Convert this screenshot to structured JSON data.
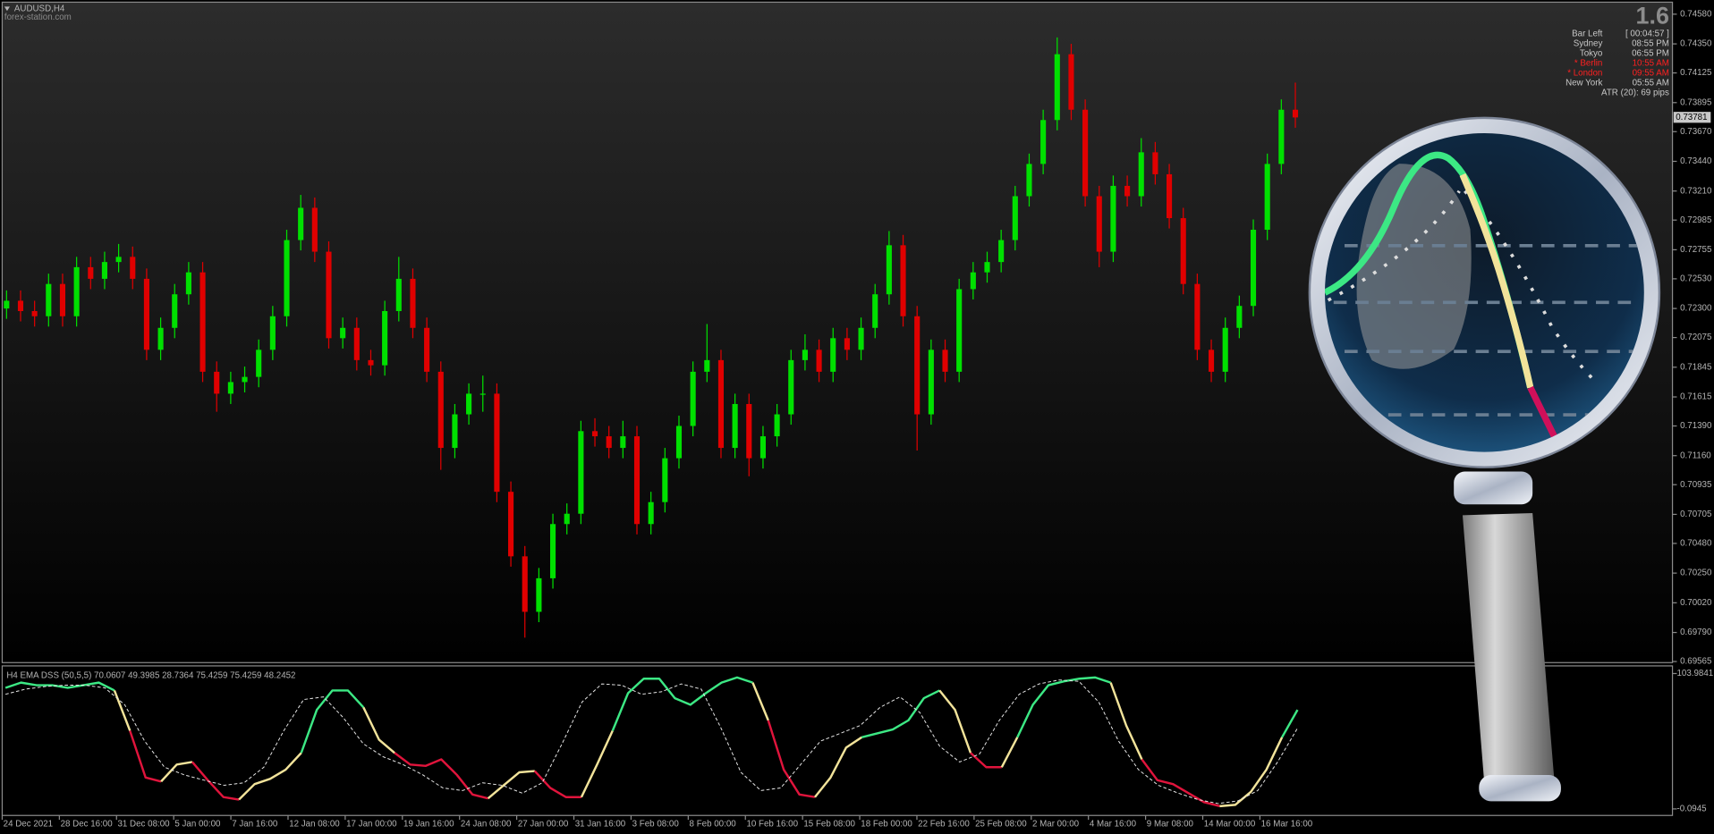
{
  "header": {
    "symbol": "AUDUSD,H4",
    "site": "forex-station.com"
  },
  "info_panel": {
    "version": "1.6",
    "rows": [
      {
        "label": "Bar Left",
        "value": "[ 00:04:57 ]",
        "color": "#c8c8c8"
      },
      {
        "label": "Sydney",
        "value": "08:55 PM",
        "color": "#c8c8c8"
      },
      {
        "label": "Tokyo",
        "value": "06:55 PM",
        "color": "#c8c8c8"
      },
      {
        "label": "* Berlin",
        "value": "10:55 AM",
        "color": "#ff2020"
      },
      {
        "label": "* London",
        "value": "09:55 AM",
        "color": "#ff2020"
      },
      {
        "label": "New York",
        "value": "05:55 AM",
        "color": "#c8c8c8"
      }
    ],
    "atr": "ATR (20): 69 pips"
  },
  "chart_data": [
    {
      "type": "candlestick",
      "colors": {
        "up": "#00e000",
        "down": "#e00000"
      },
      "ylim": [
        0.69565,
        0.7458
      ],
      "yticks": [
        {
          "value": 0.7458,
          "label": "0.74580"
        },
        {
          "value": 0.7435,
          "label": "0.74350"
        },
        0.74125,
        0.73895,
        {
          "value": 0.7367,
          "label": "0.73670"
        },
        {
          "value": 0.7344,
          "label": "0.73440"
        },
        {
          "value": 0.7321,
          "label": "0.73210"
        },
        0.72985,
        0.72755,
        {
          "value": 0.7253,
          "label": "0.72530"
        },
        {
          "value": 0.723,
          "label": "0.72300"
        },
        0.72075,
        0.71845,
        0.71615,
        {
          "value": 0.7139,
          "label": "0.71390"
        },
        {
          "value": 0.7116,
          "label": "0.71160"
        },
        0.70935,
        0.70705,
        {
          "value": 0.7048,
          "label": "0.70480"
        },
        {
          "value": 0.7025,
          "label": "0.70250"
        },
        {
          "value": 0.7002,
          "label": "0.70020"
        },
        {
          "value": 0.6979,
          "label": "0.69790"
        },
        0.69565
      ],
      "last_price": 0.73781,
      "x_labels": [
        "24 Dec 2021",
        "28 Dec 16:00",
        "31 Dec 08:00",
        "5 Jan 00:00",
        "7 Jan 16:00",
        "12 Jan 08:00",
        "17 Jan 00:00",
        "19 Jan 16:00",
        "24 Jan 08:00",
        "27 Jan 00:00",
        "31 Jan 16:00",
        "3 Feb 08:00",
        "8 Feb 00:00",
        "10 Feb 16:00",
        "15 Feb 08:00",
        "18 Feb 00:00",
        "22 Feb 16:00",
        "25 Feb 08:00",
        "2 Mar 00:00",
        "4 Mar 16:00",
        "9 Mar 08:00",
        "14 Mar 00:00",
        "16 Mar 16:00"
      ],
      "candles": [
        [
          0.723,
          0.7244,
          0.7222,
          0.7236
        ],
        [
          0.7236,
          0.7244,
          0.722,
          0.7228
        ],
        [
          0.7228,
          0.7236,
          0.7216,
          0.7224
        ],
        [
          0.7224,
          0.7257,
          0.7216,
          0.7249
        ],
        [
          0.7249,
          0.7257,
          0.7216,
          0.7224
        ],
        [
          0.7224,
          0.727,
          0.7216,
          0.7262
        ],
        [
          0.7262,
          0.727,
          0.7245,
          0.7253
        ],
        [
          0.7253,
          0.7274,
          0.7245,
          0.7266
        ],
        [
          0.7266,
          0.728,
          0.7258,
          0.727
        ],
        [
          0.727,
          0.7278,
          0.7245,
          0.7253
        ],
        [
          0.7253,
          0.7261,
          0.719,
          0.7198
        ],
        [
          0.7198,
          0.7223,
          0.719,
          0.7215
        ],
        [
          0.7215,
          0.7249,
          0.7207,
          0.7241
        ],
        [
          0.7241,
          0.7266,
          0.7233,
          0.7258
        ],
        [
          0.7258,
          0.7266,
          0.7173,
          0.7181
        ],
        [
          0.7181,
          0.7189,
          0.715,
          0.7164
        ],
        [
          0.7164,
          0.7181,
          0.7156,
          0.7173
        ],
        [
          0.7173,
          0.7185,
          0.7165,
          0.7177
        ],
        [
          0.7177,
          0.7206,
          0.7169,
          0.7198
        ],
        [
          0.7198,
          0.7232,
          0.719,
          0.7224
        ],
        [
          0.7224,
          0.7291,
          0.7216,
          0.7283
        ],
        [
          0.7283,
          0.7318,
          0.7275,
          0.7308
        ],
        [
          0.7308,
          0.7316,
          0.7266,
          0.7274
        ],
        [
          0.7274,
          0.7282,
          0.7199,
          0.7207
        ],
        [
          0.7207,
          0.7223,
          0.7199,
          0.7215
        ],
        [
          0.7215,
          0.7223,
          0.7182,
          0.719
        ],
        [
          0.719,
          0.7198,
          0.7178,
          0.7186
        ],
        [
          0.7186,
          0.7236,
          0.7178,
          0.7228
        ],
        [
          0.7228,
          0.727,
          0.722,
          0.7253
        ],
        [
          0.7253,
          0.7261,
          0.7207,
          0.7215
        ],
        [
          0.7215,
          0.7223,
          0.7173,
          0.7181
        ],
        [
          0.7181,
          0.7189,
          0.7105,
          0.7122
        ],
        [
          0.7122,
          0.7156,
          0.7114,
          0.7148
        ],
        [
          0.7148,
          0.7172,
          0.714,
          0.7164
        ],
        [
          0.7164,
          0.7178,
          0.715,
          0.7164
        ],
        [
          0.7164,
          0.7172,
          0.708,
          0.7088
        ],
        [
          0.7088,
          0.7096,
          0.703,
          0.7038
        ],
        [
          0.7038,
          0.7046,
          0.6975,
          0.6995
        ],
        [
          0.6995,
          0.7029,
          0.6987,
          0.7021
        ],
        [
          0.7021,
          0.7071,
          0.7013,
          0.7063
        ],
        [
          0.7063,
          0.7079,
          0.7055,
          0.7071
        ],
        [
          0.7071,
          0.7143,
          0.7063,
          0.7135
        ],
        [
          0.7135,
          0.7145,
          0.7123,
          0.7131
        ],
        [
          0.7131,
          0.7139,
          0.7114,
          0.7122
        ],
        [
          0.7122,
          0.7143,
          0.7114,
          0.7131
        ],
        [
          0.7131,
          0.7139,
          0.7055,
          0.7063
        ],
        [
          0.7063,
          0.7088,
          0.7055,
          0.708
        ],
        [
          0.708,
          0.7122,
          0.7072,
          0.7114
        ],
        [
          0.7114,
          0.7147,
          0.7106,
          0.7139
        ],
        [
          0.7139,
          0.7189,
          0.7131,
          0.7181
        ],
        [
          0.7181,
          0.7218,
          0.7173,
          0.719
        ],
        [
          0.719,
          0.7198,
          0.7114,
          0.7122
        ],
        [
          0.7122,
          0.7164,
          0.7114,
          0.7156
        ],
        [
          0.7156,
          0.7164,
          0.71,
          0.7114
        ],
        [
          0.7114,
          0.7139,
          0.7106,
          0.7131
        ],
        [
          0.7131,
          0.7156,
          0.7123,
          0.7148
        ],
        [
          0.7148,
          0.7198,
          0.714,
          0.719
        ],
        [
          0.719,
          0.721,
          0.7182,
          0.7198
        ],
        [
          0.7198,
          0.7206,
          0.7173,
          0.7181
        ],
        [
          0.7181,
          0.7215,
          0.7173,
          0.7207
        ],
        [
          0.7207,
          0.7215,
          0.719,
          0.7198
        ],
        [
          0.7198,
          0.7223,
          0.719,
          0.7215
        ],
        [
          0.7215,
          0.7249,
          0.7207,
          0.7241
        ],
        [
          0.7241,
          0.729,
          0.7233,
          0.7279
        ],
        [
          0.7279,
          0.7287,
          0.7216,
          0.7224
        ],
        [
          0.7224,
          0.7232,
          0.712,
          0.7148
        ],
        [
          0.7148,
          0.7206,
          0.714,
          0.7198
        ],
        [
          0.7198,
          0.7206,
          0.7173,
          0.7181
        ],
        [
          0.7181,
          0.7253,
          0.7173,
          0.7245
        ],
        [
          0.7245,
          0.7266,
          0.7237,
          0.7258
        ],
        [
          0.7258,
          0.7274,
          0.725,
          0.7266
        ],
        [
          0.7266,
          0.7291,
          0.7258,
          0.7283
        ],
        [
          0.7283,
          0.7325,
          0.7275,
          0.7317
        ],
        [
          0.7317,
          0.735,
          0.7309,
          0.7342
        ],
        [
          0.7342,
          0.7384,
          0.7334,
          0.7376
        ],
        [
          0.7376,
          0.744,
          0.7368,
          0.7427
        ],
        [
          0.7427,
          0.7435,
          0.7376,
          0.7384
        ],
        [
          0.7384,
          0.7392,
          0.7309,
          0.7317
        ],
        [
          0.7317,
          0.7325,
          0.7262,
          0.7274
        ],
        [
          0.7274,
          0.7333,
          0.7266,
          0.7325
        ],
        [
          0.7325,
          0.7333,
          0.7309,
          0.7317
        ],
        [
          0.7317,
          0.7362,
          0.7309,
          0.7351
        ],
        [
          0.7351,
          0.7359,
          0.7326,
          0.7334
        ],
        [
          0.7334,
          0.7342,
          0.7292,
          0.73
        ],
        [
          0.73,
          0.7308,
          0.7241,
          0.7249
        ],
        [
          0.7249,
          0.7257,
          0.719,
          0.7198
        ],
        [
          0.7198,
          0.7206,
          0.7173,
          0.7181
        ],
        [
          0.7181,
          0.7223,
          0.7173,
          0.7215
        ],
        [
          0.7215,
          0.724,
          0.7207,
          0.7232
        ],
        [
          0.7232,
          0.7299,
          0.7224,
          0.7291
        ],
        [
          0.7291,
          0.735,
          0.7283,
          0.7342
        ],
        [
          0.7342,
          0.7392,
          0.7334,
          0.7384
        ],
        [
          0.7384,
          0.7405,
          0.737,
          0.7378
        ]
      ]
    },
    {
      "type": "line",
      "title": "H4 EMA DSS (50,5,5) 70.0607 49.3985 28.7364 75.4259 75.4259 48.2452",
      "ylim": [
        -0.0945,
        103.9841
      ],
      "yticks": [
        103.9841,
        -0.0945
      ],
      "series": [
        {
          "values": [
            93,
            97,
            95,
            95,
            93,
            95,
            97,
            91,
            60,
            24,
            21,
            34,
            36,
            22,
            9,
            7,
            19,
            23,
            30,
            43,
            76,
            91,
            91,
            78,
            53,
            43,
            34,
            33,
            38,
            26,
            11,
            8,
            18,
            28,
            29,
            16,
            9,
            9,
            34,
            60,
            89,
            100,
            100,
            85,
            80,
            89,
            97,
            101,
            97,
            68,
            30,
            11,
            9,
            24,
            47,
            55,
            58,
            61,
            68,
            85,
            91,
            76,
            43,
            32,
            32,
            55,
            80,
            95,
            98,
            100,
            101,
            97,
            64,
            38,
            22,
            19,
            12,
            5,
            2,
            3,
            13,
            30,
            55,
            76
          ],
          "colors": [
            "#3ce884",
            "#f2e39a",
            "#e0143c"
          ],
          "color_index": [
            0,
            0,
            0,
            0,
            0,
            0,
            0,
            0,
            1,
            2,
            2,
            1,
            1,
            2,
            2,
            2,
            1,
            1,
            1,
            1,
            0,
            0,
            0,
            0,
            1,
            1,
            2,
            2,
            2,
            2,
            2,
            2,
            1,
            1,
            1,
            2,
            2,
            2,
            1,
            1,
            0,
            0,
            0,
            0,
            0,
            0,
            0,
            0,
            0,
            1,
            2,
            2,
            2,
            1,
            1,
            1,
            0,
            0,
            0,
            0,
            0,
            1,
            1,
            2,
            2,
            1,
            0,
            0,
            0,
            0,
            0,
            0,
            1,
            1,
            2,
            2,
            2,
            2,
            2,
            1,
            1,
            1,
            1,
            0
          ]
        },
        {
          "values": [
            88,
            92,
            94,
            95,
            95,
            93,
            80,
            52,
            32,
            26,
            22,
            18,
            20,
            32,
            60,
            84,
            86,
            70,
            50,
            40,
            34,
            26,
            16,
            14,
            20,
            18,
            12,
            20,
            50,
            82,
            96,
            95,
            88,
            90,
            96,
            92,
            62,
            28,
            14,
            16,
            34,
            52,
            58,
            64,
            78,
            86,
            74,
            48,
            36,
            42,
            68,
            88,
            96,
            99,
            98,
            82,
            52,
            30,
            18,
            12,
            7,
            4,
            6,
            14,
            36,
            62
          ],
          "color": "#e8e8e8",
          "dashed": true
        }
      ]
    }
  ]
}
